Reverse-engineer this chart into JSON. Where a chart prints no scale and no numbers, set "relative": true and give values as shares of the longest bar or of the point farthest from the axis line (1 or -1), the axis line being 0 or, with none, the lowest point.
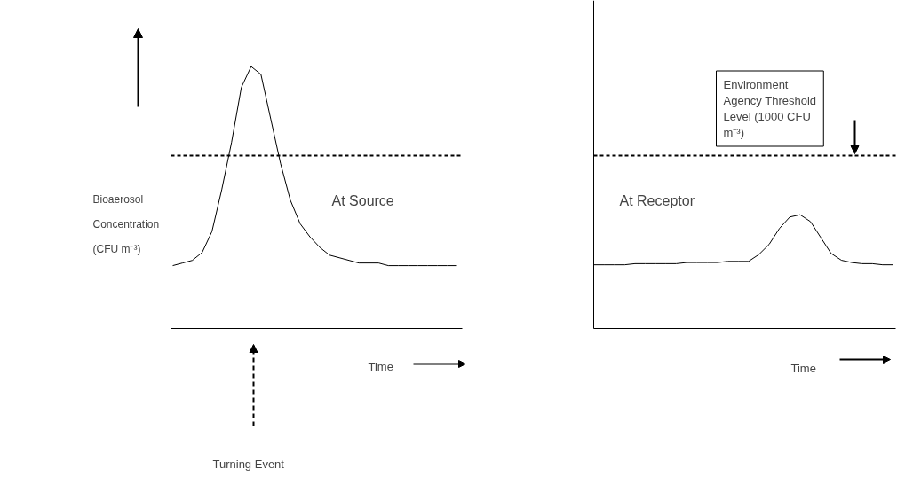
{
  "chart_data": [
    {
      "type": "line",
      "relative": true,
      "xlabel": "Time",
      "ylabel": "Bioaerosol Concentration (CFU m⁻³)",
      "categories": [
        null,
        null,
        null,
        null,
        null,
        null,
        null,
        null,
        null,
        null,
        null,
        null,
        null,
        null,
        null,
        null,
        null,
        null,
        null,
        null,
        null,
        null,
        null,
        null,
        null,
        null,
        null,
        null,
        null,
        null
      ],
      "series": [
        {
          "color": "#000000",
          "values": [
            0.24,
            0.25,
            0.26,
            0.29,
            0.37,
            0.53,
            0.71,
            0.92,
            1,
            0.97,
            0.8,
            0.63,
            0.49,
            0.4,
            0.35,
            0.31,
            0.28,
            0.27,
            0.26,
            0.25,
            0.25,
            0.25,
            0.24,
            0.24,
            0.24,
            0.24,
            0.24,
            0.24,
            0.24,
            0.24
          ]
        }
      ],
      "ref_lines": [
        {
          "axis": "y",
          "value": 0.66,
          "color": "#000000",
          "line_style": "dashed"
        }
      ],
      "annotations": [
        "At Source",
        "Turning Event"
      ]
    },
    {
      "type": "line",
      "relative": true,
      "xlabel": "Time",
      "categories": [
        null,
        null,
        null,
        null,
        null,
        null,
        null,
        null,
        null,
        null,
        null,
        null,
        null,
        null,
        null,
        null,
        null,
        null,
        null,
        null,
        null,
        null,
        null,
        null,
        null,
        null,
        null,
        null,
        null,
        null
      ],
      "series": [
        {
          "color": "#000000",
          "values": [
            0.56,
            0.56,
            0.56,
            0.56,
            0.57,
            0.57,
            0.57,
            0.57,
            0.57,
            0.58,
            0.58,
            0.58,
            0.58,
            0.59,
            0.59,
            0.59,
            0.65,
            0.74,
            0.88,
            0.98,
            1,
            0.94,
            0.8,
            0.66,
            0.6,
            0.58,
            0.57,
            0.57,
            0.56,
            0.56
          ]
        }
      ],
      "ref_lines": [
        {
          "axis": "y",
          "value": 1.52,
          "color": "#000000",
          "line_style": "dashed",
          "label": "Environment Agency Threshold Level (1000  CFU m⁻³)"
        }
      ],
      "annotations": [
        "At Receptor"
      ]
    }
  ]
}
